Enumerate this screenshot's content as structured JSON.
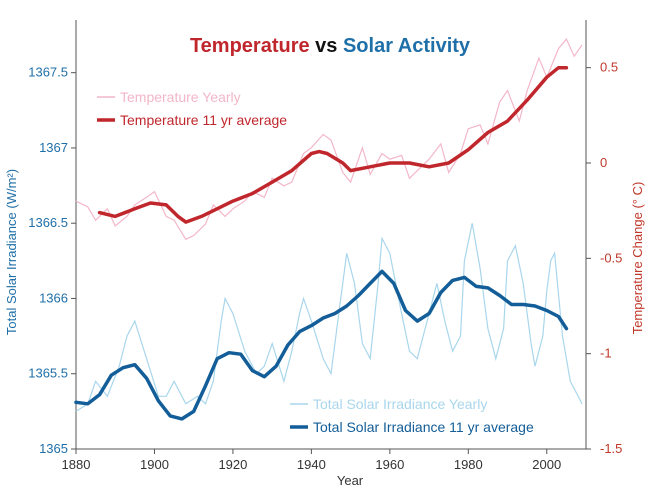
{
  "chart_data": {
    "type": "line",
    "title": {
      "part1": "Temperature",
      "part2": " vs ",
      "part3": "Solar Activity"
    },
    "xlabel": "Year",
    "ylabel_left": "Total Solar Irradiance (W/m²)",
    "ylabel_right": "Temperature Change (° C)",
    "xlim": [
      1880,
      2010
    ],
    "ylim_left": [
      1365,
      1367.85
    ],
    "ylim_right": [
      -1.5,
      0.75
    ],
    "x_ticks": [
      1880,
      1900,
      1920,
      1940,
      1960,
      1980,
      2000
    ],
    "left_ticks": [
      {
        "value": 1365,
        "label": "1365"
      },
      {
        "value": 1365.5,
        "label": "1365.5"
      },
      {
        "value": 1366,
        "label": "1366"
      },
      {
        "value": 1366.5,
        "label": "1366.5"
      },
      {
        "value": 1367,
        "label": "1367"
      },
      {
        "value": 1367.5,
        "label": "1367.5"
      }
    ],
    "right_ticks": [
      {
        "value": 0.5,
        "label": "0.5"
      },
      {
        "value": 0,
        "label": "0"
      },
      {
        "value": -0.5,
        "label": "-0.5"
      },
      {
        "value": -1,
        "label": "-1"
      },
      {
        "value": -1.5,
        "label": "-1.5"
      }
    ],
    "colors": {
      "temp_title": "#c0272d",
      "solar_title": "#1f6fa8",
      "vs": "#111111",
      "temp_yearly": "#f3b6c8",
      "temp_avg": "#c0272d",
      "solar_yearly": "#a9d6ec",
      "solar_avg": "#135d98"
    },
    "legend": {
      "temp_yearly": "Temperature Yearly",
      "temp_avg": "Temperature 11 yr average",
      "solar_yearly": "Total Solar Irradiance Yearly",
      "solar_avg": "Total Solar Irradiance 11 yr average"
    },
    "series": [
      {
        "name": "Temperature Yearly",
        "axis": "right",
        "x": [
          1880,
          1883,
          1885,
          1888,
          1890,
          1893,
          1895,
          1898,
          1900,
          1903,
          1905,
          1908,
          1910,
          1913,
          1915,
          1918,
          1920,
          1923,
          1925,
          1928,
          1930,
          1933,
          1935,
          1938,
          1940,
          1943,
          1945,
          1948,
          1950,
          1953,
          1955,
          1958,
          1960,
          1963,
          1965,
          1968,
          1970,
          1973,
          1975,
          1978,
          1980,
          1983,
          1985,
          1988,
          1990,
          1993,
          1995,
          1998,
          2000,
          2003,
          2005,
          2007,
          2009
        ],
        "values": [
          -0.2,
          -0.23,
          -0.3,
          -0.24,
          -0.33,
          -0.28,
          -0.22,
          -0.18,
          -0.15,
          -0.28,
          -0.3,
          -0.4,
          -0.38,
          -0.32,
          -0.22,
          -0.28,
          -0.24,
          -0.2,
          -0.15,
          -0.18,
          -0.08,
          -0.12,
          -0.1,
          0.05,
          0.08,
          0.15,
          0.12,
          -0.05,
          -0.1,
          0.08,
          -0.06,
          0.05,
          0.02,
          0.04,
          -0.08,
          -0.02,
          0.02,
          0.1,
          -0.05,
          0.05,
          0.18,
          0.2,
          0.1,
          0.32,
          0.38,
          0.22,
          0.38,
          0.55,
          0.45,
          0.6,
          0.65,
          0.56,
          0.62
        ]
      },
      {
        "name": "Temperature 11 yr average",
        "axis": "right",
        "x": [
          1886,
          1890,
          1895,
          1899,
          1903,
          1906,
          1908,
          1912,
          1915,
          1920,
          1925,
          1930,
          1935,
          1940,
          1942,
          1944,
          1948,
          1950,
          1955,
          1960,
          1965,
          1970,
          1975,
          1980,
          1985,
          1990,
          1995,
          2000,
          2003,
          2005
        ],
        "values": [
          -0.26,
          -0.28,
          -0.24,
          -0.21,
          -0.22,
          -0.28,
          -0.31,
          -0.28,
          -0.25,
          -0.2,
          -0.16,
          -0.1,
          -0.04,
          0.05,
          0.06,
          0.05,
          0.0,
          -0.04,
          -0.02,
          0.0,
          0.0,
          -0.02,
          0.0,
          0.07,
          0.16,
          0.22,
          0.33,
          0.45,
          0.5,
          0.5
        ]
      },
      {
        "name": "Total Solar Irradiance Yearly",
        "axis": "left",
        "x": [
          1880,
          1883,
          1885,
          1888,
          1891,
          1893,
          1895,
          1898,
          1901,
          1903,
          1905,
          1908,
          1911,
          1913,
          1915,
          1917,
          1918,
          1920,
          1923,
          1926,
          1928,
          1930,
          1933,
          1935,
          1937,
          1938,
          1940,
          1943,
          1945,
          1947,
          1949,
          1951,
          1953,
          1955,
          1957,
          1958,
          1960,
          1963,
          1965,
          1967,
          1968,
          1970,
          1972,
          1974,
          1976,
          1978,
          1979,
          1981,
          1983,
          1985,
          1987,
          1989,
          1990,
          1992,
          1994,
          1996,
          1997,
          1999,
          2000,
          2001,
          2002,
          2004,
          2006,
          2009
        ],
        "values": [
          1365.25,
          1365.3,
          1365.45,
          1365.35,
          1365.55,
          1365.75,
          1365.85,
          1365.6,
          1365.35,
          1365.35,
          1365.45,
          1365.3,
          1365.35,
          1365.3,
          1365.45,
          1365.85,
          1366.0,
          1365.9,
          1365.65,
          1365.5,
          1365.55,
          1365.7,
          1365.45,
          1365.65,
          1365.9,
          1366.0,
          1365.85,
          1365.6,
          1365.5,
          1365.9,
          1366.3,
          1366.1,
          1365.7,
          1365.6,
          1366.1,
          1366.4,
          1366.3,
          1365.9,
          1365.65,
          1365.6,
          1365.7,
          1365.9,
          1366.1,
          1365.85,
          1365.65,
          1365.75,
          1366.25,
          1366.5,
          1366.2,
          1365.8,
          1365.6,
          1365.8,
          1366.25,
          1366.35,
          1366.1,
          1365.7,
          1365.55,
          1365.75,
          1366.05,
          1366.25,
          1366.3,
          1365.75,
          1365.45,
          1365.3
        ]
      },
      {
        "name": "Total Solar Irradiance 11 yr average",
        "axis": "left",
        "x": [
          1880,
          1883,
          1886,
          1889,
          1892,
          1895,
          1898,
          1901,
          1904,
          1907,
          1910,
          1913,
          1916,
          1919,
          1922,
          1925,
          1928,
          1931,
          1934,
          1937,
          1940,
          1943,
          1946,
          1949,
          1952,
          1955,
          1958,
          1961,
          1964,
          1967,
          1970,
          1973,
          1976,
          1979,
          1982,
          1985,
          1988,
          1991,
          1994,
          1997,
          2000,
          2003,
          2005
        ],
        "values": [
          1365.31,
          1365.3,
          1365.36,
          1365.49,
          1365.54,
          1365.56,
          1365.47,
          1365.32,
          1365.22,
          1365.2,
          1365.25,
          1365.42,
          1365.6,
          1365.64,
          1365.63,
          1365.52,
          1365.48,
          1365.55,
          1365.69,
          1365.78,
          1365.82,
          1365.87,
          1365.9,
          1365.95,
          1366.02,
          1366.1,
          1366.18,
          1366.1,
          1365.92,
          1365.85,
          1365.9,
          1366.04,
          1366.12,
          1366.14,
          1366.08,
          1366.07,
          1366.02,
          1365.96,
          1365.96,
          1365.95,
          1365.92,
          1365.88,
          1365.8
        ]
      }
    ]
  }
}
